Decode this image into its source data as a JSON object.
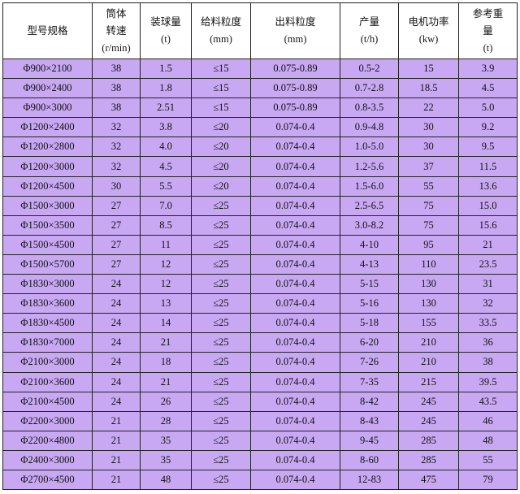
{
  "table": {
    "header": [
      [
        "型号规格"
      ],
      [
        "筒体",
        "转速",
        "(r/min)"
      ],
      [
        "装球量",
        "(t)"
      ],
      [
        "给料粒度",
        "(mm)"
      ],
      [
        "出料粒度",
        "(mm)"
      ],
      [
        "产量",
        "(t/h)"
      ],
      [
        "电机功率",
        "(kw)"
      ],
      [
        "参考重",
        "量",
        "(t)"
      ]
    ],
    "rows": [
      [
        "Φ900×2100",
        "38",
        "1.5",
        "≤15",
        "0.075-0.89",
        "0.5-2",
        "15",
        "3.9"
      ],
      [
        "Φ900×2400",
        "38",
        "1.8",
        "≤15",
        "0.075-0.89",
        "0.7-2.8",
        "18.5",
        "4.5"
      ],
      [
        "Φ900×3000",
        "38",
        "2.51",
        "≤15",
        "0.075-0.89",
        "0.8-3.5",
        "22",
        "5.0"
      ],
      [
        "Φ1200×2400",
        "32",
        "3.8",
        "≤20",
        "0.074-0.4",
        "0.9-4.8",
        "30",
        "9.2"
      ],
      [
        "Φ1200×2800",
        "32",
        "4.0",
        "≤20",
        "0.074-0.4",
        "1.0-5.0",
        "30",
        "9.5"
      ],
      [
        "Φ1200×3000",
        "32",
        "4.5",
        "≤20",
        "0.074-0.4",
        "1.2-5.6",
        "37",
        "11.5"
      ],
      [
        "Φ1200×4500",
        "30",
        "5.5",
        "≤20",
        "0.074-0.4",
        "1.5-6.0",
        "55",
        "13.6"
      ],
      [
        "Φ1500×3000",
        "27",
        "7.0",
        "≤25",
        "0.074-0.4",
        "2.5-6.5",
        "75",
        "15.0"
      ],
      [
        "Φ1500×3500",
        "27",
        "8.5",
        "≤25",
        "0.074-0.4",
        "3.0-8.2",
        "75",
        "15.6"
      ],
      [
        "Φ1500×4500",
        "27",
        "11",
        "≤25",
        "0.074-0.4",
        "4-10",
        "95",
        "21"
      ],
      [
        "Φ1500×5700",
        "27",
        "12",
        "≤25",
        "0.074-0.4",
        "4-13",
        "110",
        "23.5"
      ],
      [
        "Φ1830×3000",
        "24",
        "12",
        "≤25",
        "0.074-0.4",
        "5-15",
        "130",
        "31"
      ],
      [
        "Φ1830×3600",
        "24",
        "13",
        "≤25",
        "0.074-0.4",
        "5-16",
        "130",
        "32"
      ],
      [
        "Φ1830×4500",
        "24",
        "14",
        "≤25",
        "0.074-0.4",
        "5-18",
        "155",
        "33.5"
      ],
      [
        "Φ1830×7000",
        "24",
        "21",
        "≤25",
        "0.074-0.4",
        "6-20",
        "210",
        "36"
      ],
      [
        "Φ2100×3000",
        "24",
        "18",
        "≤25",
        "0.074-0.4",
        "7-26",
        "210",
        "38"
      ],
      [
        "Φ2100×3600",
        "24",
        "21",
        "≤25",
        "0.074-0.4",
        "7-35",
        "215",
        "39.5"
      ],
      [
        "Φ2100×4500",
        "24",
        "26",
        "≤25",
        "0.074-0.4",
        "8-42",
        "245",
        "43.5"
      ],
      [
        "Φ2200×3000",
        "21",
        "28",
        "≤25",
        "0.074-0.4",
        "8-43",
        "245",
        "46"
      ],
      [
        "Φ2200×4800",
        "21",
        "35",
        "≤25",
        "0.074-0.4",
        "9-45",
        "285",
        "48"
      ],
      [
        "Φ2400×3000",
        "21",
        "35",
        "≤25",
        "0.074-0.4",
        "8-60",
        "285",
        "55"
      ],
      [
        "Φ2700×4500",
        "21",
        "48",
        "≤25",
        "0.074-0.4",
        "12-83",
        "475",
        "79"
      ]
    ]
  }
}
